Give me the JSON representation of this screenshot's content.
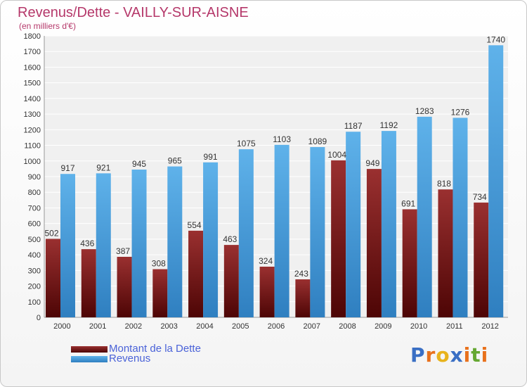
{
  "header": {
    "title": "Revenus/Dette - VAILLY-SUR-AISNE",
    "subtitle": "(en milliers d'€)"
  },
  "legend": {
    "items": [
      {
        "label": "Montant de la Dette",
        "color": "#7a1a1a"
      },
      {
        "label": "Revenus",
        "color": "#4aa3e0"
      }
    ]
  },
  "logo": {
    "text": "Proxiti",
    "letters": [
      {
        "char": "P",
        "color": "#3a6fc4"
      },
      {
        "char": "r",
        "color": "#e8711c"
      },
      {
        "char": "o",
        "color": "#e8b31c"
      },
      {
        "char": "x",
        "color": "#3a6fc4"
      },
      {
        "char": "i",
        "color": "#e8711c"
      },
      {
        "char": "t",
        "color": "#66a832"
      },
      {
        "char": "i",
        "color": "#e8711c"
      }
    ]
  },
  "chart_data": {
    "type": "bar",
    "categories": [
      "2000",
      "2001",
      "2002",
      "2003",
      "2004",
      "2005",
      "2006",
      "2007",
      "2008",
      "2009",
      "2010",
      "2011",
      "2012"
    ],
    "series": [
      {
        "name": "Montant de la Dette",
        "color": "#7a1a1a",
        "values": [
          502,
          436,
          387,
          308,
          554,
          463,
          324,
          243,
          1004,
          949,
          691,
          818,
          734
        ]
      },
      {
        "name": "Revenus",
        "color": "#4aa3e0",
        "values": [
          917,
          921,
          945,
          965,
          991,
          1075,
          1103,
          1089,
          1187,
          1192,
          1283,
          1276,
          1740
        ]
      }
    ],
    "yticks": [
      0,
      100,
      200,
      300,
      400,
      500,
      600,
      700,
      800,
      900,
      1000,
      1100,
      1200,
      1300,
      1400,
      1500,
      1600,
      1700,
      1800
    ],
    "ylim": [
      0,
      1800
    ],
    "grid": true,
    "legend_position": "bottom-left"
  }
}
